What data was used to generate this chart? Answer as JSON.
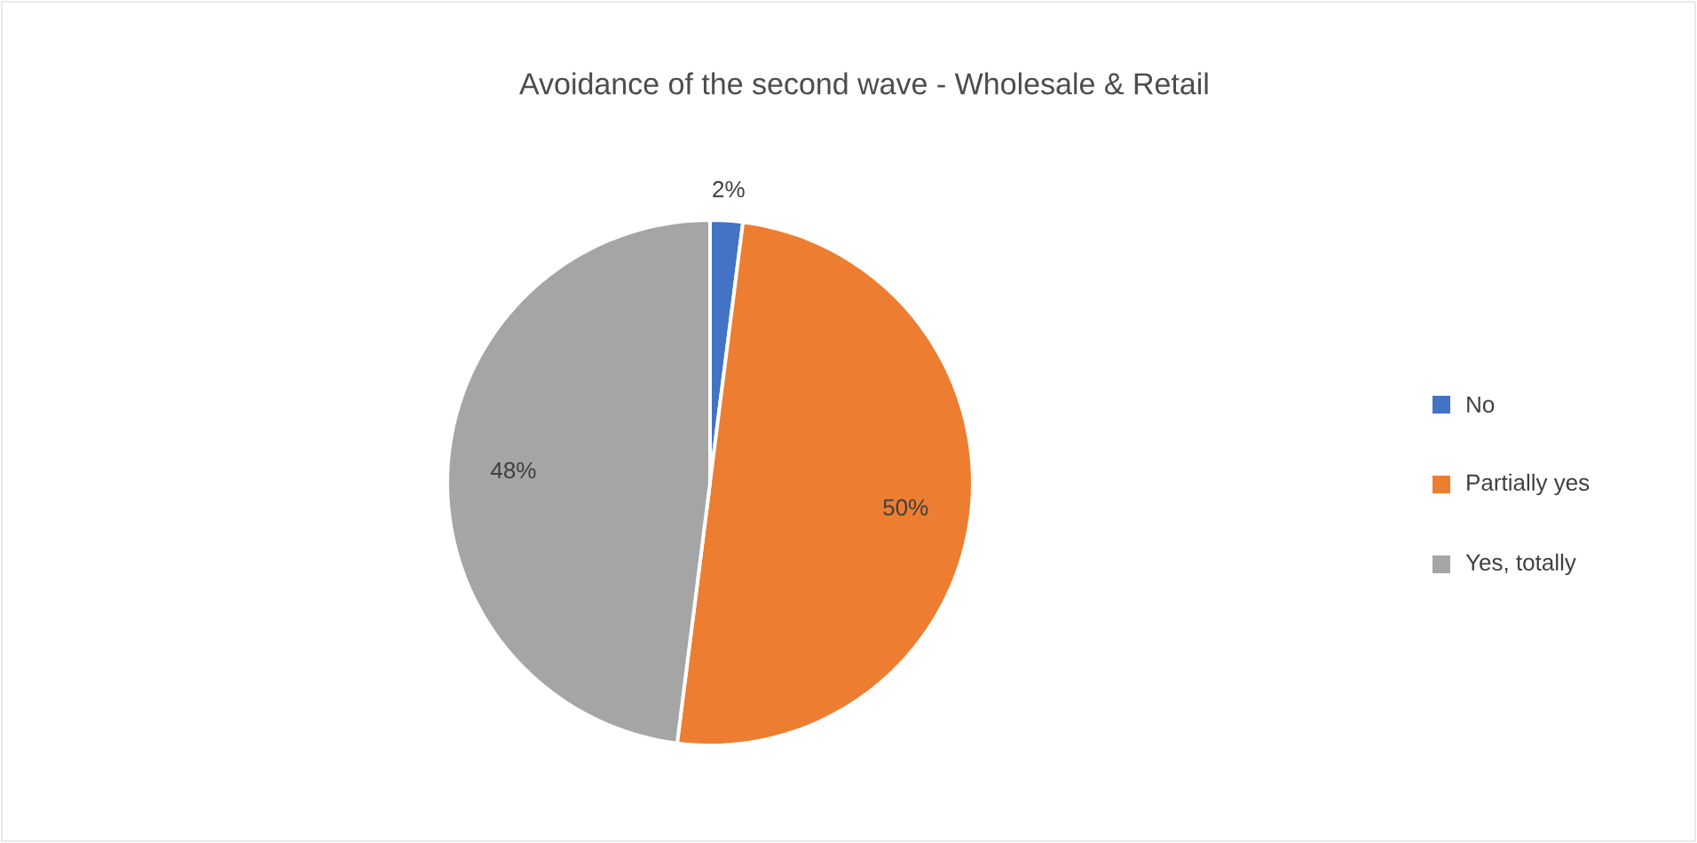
{
  "chart_data": {
    "type": "pie",
    "title": "Avoidance of the second wave - Wholesale & Retail",
    "categories": [
      "No",
      "Partially yes",
      "Yes, totally"
    ],
    "values": [
      2,
      50,
      48
    ],
    "colors": [
      "#4472c4",
      "#ed7d31",
      "#a5a5a5"
    ],
    "value_labels": [
      "2%",
      "50%",
      "48%"
    ],
    "legend": "right"
  }
}
